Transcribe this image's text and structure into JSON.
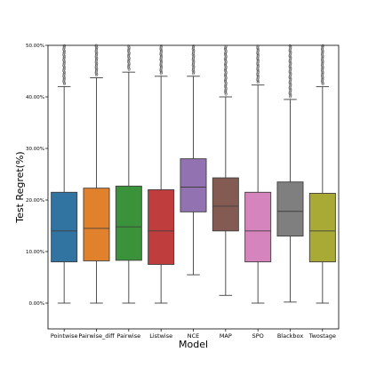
{
  "chart_data": {
    "type": "box",
    "xlabel": "Model",
    "ylabel": "Test Regret(%)",
    "ylim": [
      -5,
      50
    ],
    "yticks": [
      0,
      10,
      20,
      30,
      40,
      50
    ],
    "ytick_labels": [
      "0.00%",
      "10.00%",
      "20.00%",
      "30.00%",
      "40.00%",
      "50.00%"
    ],
    "grid": false,
    "categories": [
      "Pointwise",
      "Pairwise_diff",
      "Pairwise",
      "Listwise",
      "NCE",
      "MAP",
      "SPO",
      "Blackbox",
      "Twostage"
    ],
    "colors": [
      "#3274a1",
      "#e1812c",
      "#3a923a",
      "#c03d3e",
      "#9372b2",
      "#845b53",
      "#d684bd",
      "#7f7f7f",
      "#a9aa35"
    ],
    "boxes": [
      {
        "min": 0.0,
        "q1": 8.0,
        "median": 14.0,
        "q3": 21.5,
        "max": 42.0,
        "outliers_from": 42.5,
        "outliers_to": 50.0
      },
      {
        "min": 0.0,
        "q1": 8.2,
        "median": 14.5,
        "q3": 22.3,
        "max": 43.7,
        "outliers_from": 44.2,
        "outliers_to": 50.0
      },
      {
        "min": 0.0,
        "q1": 8.3,
        "median": 14.8,
        "q3": 22.7,
        "max": 44.8,
        "outliers_from": 45.3,
        "outliers_to": 50.0
      },
      {
        "min": 0.0,
        "q1": 7.5,
        "median": 14.0,
        "q3": 22.0,
        "max": 44.0,
        "outliers_from": 44.5,
        "outliers_to": 50.0
      },
      {
        "min": 5.5,
        "q1": 17.7,
        "median": 22.5,
        "q3": 28.0,
        "max": 44.0,
        "outliers_from": 44.5,
        "outliers_to": 50.0
      },
      {
        "min": 1.5,
        "q1": 14.0,
        "median": 18.8,
        "q3": 24.3,
        "max": 40.0,
        "outliers_from": 40.5,
        "outliers_to": 50.0
      },
      {
        "min": 0.0,
        "q1": 8.0,
        "median": 14.0,
        "q3": 21.5,
        "max": 42.3,
        "outliers_from": 42.8,
        "outliers_to": 50.0
      },
      {
        "min": 0.2,
        "q1": 13.0,
        "median": 17.8,
        "q3": 23.5,
        "max": 39.5,
        "outliers_from": 40.0,
        "outliers_to": 50.0
      },
      {
        "min": 0.0,
        "q1": 8.0,
        "median": 14.0,
        "q3": 21.3,
        "max": 42.0,
        "outliers_from": 42.5,
        "outliers_to": 50.0
      }
    ]
  }
}
